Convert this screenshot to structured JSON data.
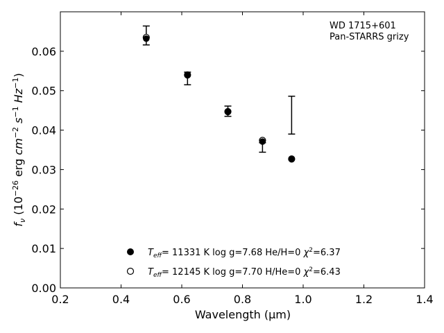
{
  "chart_data": {
    "type": "scatter",
    "title": "",
    "xlabel": "Wavelength (μm)",
    "ylabel": "fν (10⁻²⁶ erg cm⁻² s⁻¹ Hz⁻¹)",
    "xlim": [
      0.2,
      1.4
    ],
    "ylim": [
      0.0,
      0.07
    ],
    "xticks": [
      "0.2",
      "0.4",
      "0.6",
      "0.8",
      "1.0",
      "1.2",
      "1.4"
    ],
    "yticks": [
      "0.00",
      "0.01",
      "0.02",
      "0.03",
      "0.04",
      "0.05",
      "0.06"
    ],
    "grid": false,
    "annotation": [
      "WD 1715+601",
      "Pan-STARRS grizy"
    ],
    "legend_position": "bottom-center",
    "observed": {
      "x": [
        0.483,
        0.619,
        0.752,
        0.866,
        0.962
      ],
      "y": [
        0.064,
        0.0531,
        0.0448,
        0.0356,
        0.0438
      ],
      "yerr_low": [
        0.0024,
        0.0016,
        0.0013,
        0.0012,
        0.0048
      ],
      "yerr_high": [
        0.0024,
        0.0016,
        0.0013,
        0.0012,
        0.0048
      ]
    },
    "series": [
      {
        "name": "Teff= 11331 K  log g=7.68  He/H=0  χ²=6.37",
        "marker": "filled-circle",
        "x": [
          0.483,
          0.619,
          0.752,
          0.866,
          0.962
        ],
        "y": [
          0.0632,
          0.0539,
          0.0446,
          0.0371,
          0.0326
        ]
      },
      {
        "name": "Teff= 12145 K  log g=7.70  H/He=0  χ²=6.43",
        "marker": "open-circle",
        "x": [
          0.483,
          0.619,
          0.752,
          0.866,
          0.962
        ],
        "y": [
          0.0635,
          0.054,
          0.0447,
          0.0374,
          0.0327
        ]
      }
    ],
    "legend": {
      "entry1": {
        "T": "T",
        "eff": "eff",
        "rest": "= 11331 K  log g=7.68  He/H=0  ",
        "chi": "χ",
        "sup": "2",
        "val": "=6.37"
      },
      "entry2": {
        "T": "T",
        "eff": "eff",
        "rest": "= 12145 K  log g=7.70  H/He=0  ",
        "chi": "χ",
        "sup": "2",
        "val": "=6.43"
      }
    },
    "colors": {
      "marker": "#000000",
      "axis": "#000000",
      "background": "#ffffff"
    }
  }
}
